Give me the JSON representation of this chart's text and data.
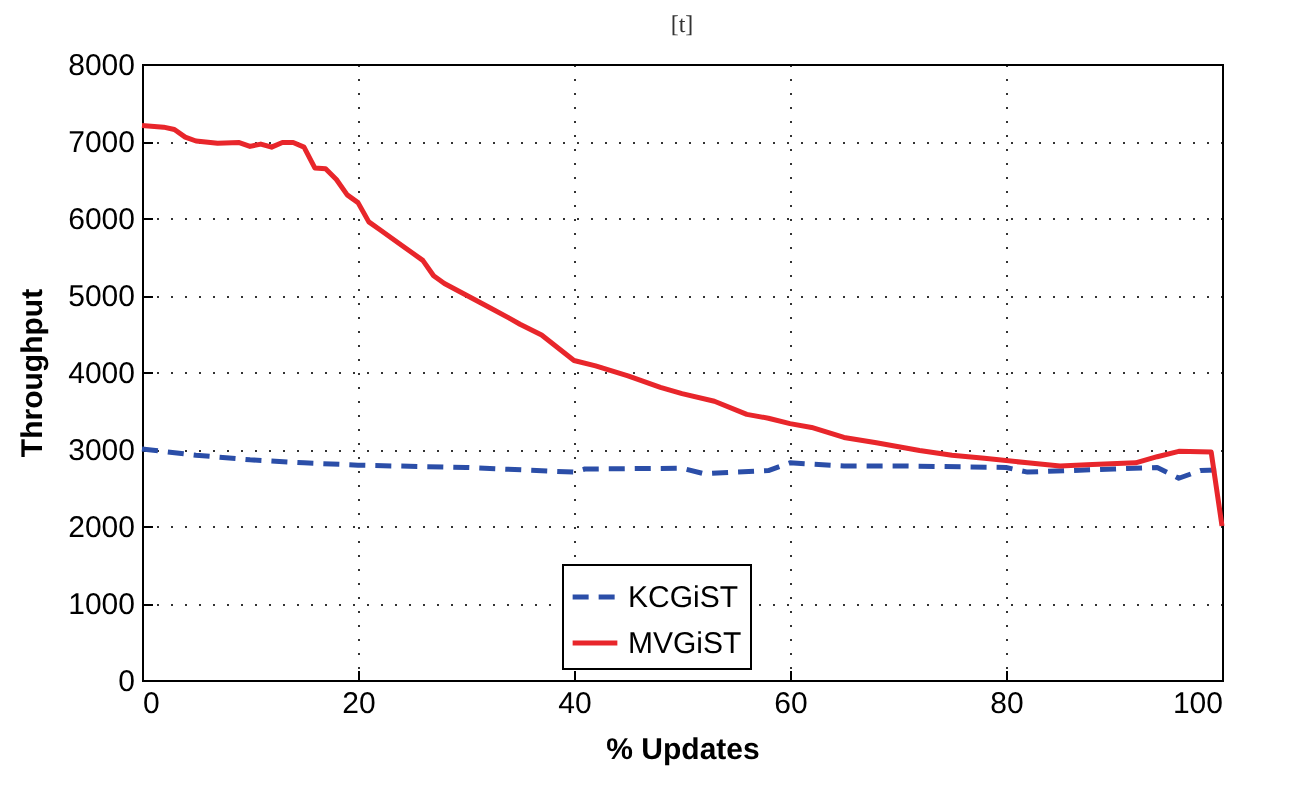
{
  "chart_data": {
    "type": "line",
    "title": "[t]",
    "xlabel": "% Updates",
    "ylabel": "Throughput",
    "xlim": [
      0,
      100
    ],
    "xticks": [
      0,
      20,
      40,
      60,
      80,
      100
    ],
    "ylim": [
      0,
      8000
    ],
    "yticks": [
      0,
      1000,
      2000,
      3000,
      4000,
      5000,
      6000,
      7000,
      8000
    ],
    "grid": true,
    "legend": "bottom",
    "series": [
      {
        "name": "KCGiST",
        "color": "#2b4ea8",
        "line_style": "dashed",
        "x": [
          0,
          5,
          10,
          15,
          20,
          30,
          40,
          41,
          50,
          52,
          58,
          60,
          65,
          70,
          80,
          82,
          90,
          94,
          96,
          98,
          100
        ],
        "values": [
          3000,
          2920,
          2860,
          2820,
          2790,
          2760,
          2700,
          2740,
          2750,
          2680,
          2720,
          2820,
          2780,
          2780,
          2760,
          2700,
          2740,
          2760,
          2620,
          2720,
          2730
        ]
      },
      {
        "name": "MVGiST",
        "color": "#e8262b",
        "line_style": "solid",
        "x": [
          0,
          2,
          3,
          4,
          5,
          7,
          9,
          10,
          11,
          12,
          13,
          14,
          15,
          16,
          17,
          18,
          19,
          20,
          21,
          22,
          24,
          26,
          27,
          28,
          30,
          32,
          34,
          35,
          37,
          40,
          42,
          45,
          48,
          50,
          53,
          56,
          58,
          60,
          62,
          65,
          68,
          72,
          75,
          78,
          82,
          85,
          88,
          92,
          94,
          96,
          99,
          100
        ],
        "values": [
          7200,
          7180,
          7150,
          7050,
          7000,
          6970,
          6980,
          6930,
          6960,
          6920,
          6980,
          6980,
          6920,
          6650,
          6640,
          6500,
          6300,
          6200,
          5950,
          5850,
          5650,
          5450,
          5250,
          5150,
          5000,
          4850,
          4700,
          4620,
          4480,
          4150,
          4080,
          3950,
          3800,
          3720,
          3620,
          3450,
          3400,
          3330,
          3280,
          3150,
          3080,
          2980,
          2920,
          2880,
          2820,
          2780,
          2800,
          2820,
          2900,
          2970,
          2960,
          2000
        ]
      }
    ]
  }
}
